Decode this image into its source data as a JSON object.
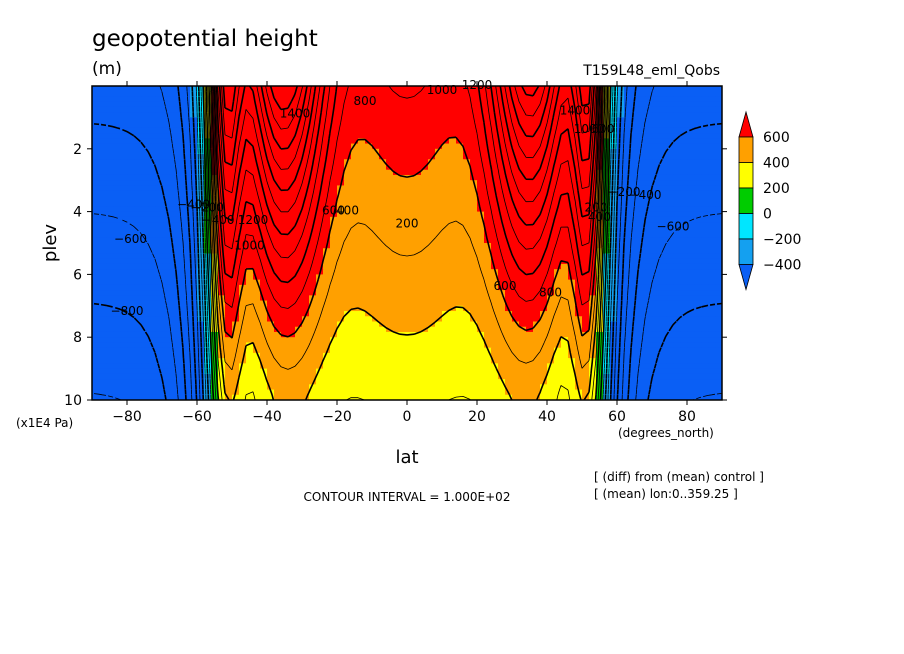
{
  "colors": {
    "c1": "#0a5ff5",
    "c2": "#14a0f0",
    "c3": "#00e6ff",
    "c4": "#00cc00",
    "c5": "#ffff00",
    "c6": "#ffa000",
    "c7": "#ff0000",
    "c0": "#0a5ff5"
  },
  "chart_data": {
    "type": "heatmap",
    "title": "geopotential height",
    "units": "(m)",
    "run_label": "T159L48_eml_Qobs",
    "xlabel": "lat",
    "xunits": "(degrees_north)",
    "ylabel": "plev",
    "yunits": "(x1E4 Pa)",
    "xlim": [
      -90,
      90
    ],
    "ylim": [
      0,
      10
    ],
    "y_reversed": true,
    "x_ticks": [
      -80,
      -60,
      -40,
      -20,
      0,
      20,
      40,
      60,
      80
    ],
    "x_tick_labels": [
      "−80",
      "−60",
      "−40",
      "−20",
      "0",
      "20",
      "40",
      "60",
      "80"
    ],
    "y_ticks": [
      2,
      4,
      6,
      8,
      10
    ],
    "y_tick_labels": [
      "2",
      "4",
      "6",
      "8",
      "10"
    ],
    "contour_interval_text": "CONTOUR INTERVAL = 1.000E+02",
    "note_lines": [
      "[ (diff) from (mean) control ]",
      "[ (mean) lon:0..359.25 ]"
    ],
    "colorbar": {
      "levels": [
        -400,
        -200,
        0,
        200,
        400,
        600
      ],
      "labels": [
        "−400",
        "−200",
        "0",
        "200",
        "400",
        "600"
      ],
      "colors": [
        "#0a5ff5",
        "#14a0f0",
        "#00e6ff",
        "#00cc00",
        "#ffff00",
        "#ffa000",
        "#ff0000"
      ]
    },
    "contour_labels": [
      {
        "text": "200",
        "x": 0,
        "y": 4.5
      },
      {
        "text": "400",
        "x": -17,
        "y": 4.1
      },
      {
        "text": "600",
        "x": -21,
        "y": 4.1
      },
      {
        "text": "800",
        "x": -12,
        "y": 0.6
      },
      {
        "text": "1000",
        "x": 10,
        "y": 0.25
      },
      {
        "text": "1200",
        "x": 20,
        "y": 0.1
      },
      {
        "text": "1400",
        "x": -32,
        "y": 1.0
      },
      {
        "text": "1400",
        "x": 48,
        "y": 0.9
      },
      {
        "text": "1200",
        "x": -44,
        "y": 4.4
      },
      {
        "text": "1000",
        "x": -45,
        "y": 5.2
      },
      {
        "text": "1000",
        "x": 52,
        "y": 1.5
      },
      {
        "text": "600",
        "x": 56,
        "y": 1.5
      },
      {
        "text": "600",
        "x": 28,
        "y": 6.5
      },
      {
        "text": "800",
        "x": 41,
        "y": 6.7
      },
      {
        "text": "−200",
        "x": 62,
        "y": 3.5
      },
      {
        "text": "−400",
        "x": 68,
        "y": 3.6
      },
      {
        "text": "−600",
        "x": 76,
        "y": 4.6
      },
      {
        "text": "−600",
        "x": -79,
        "y": 5.0
      },
      {
        "text": "−800",
        "x": -80,
        "y": 7.3
      },
      {
        "text": "−400",
        "x": -61,
        "y": 3.9
      },
      {
        "text": "−200",
        "x": -57,
        "y": 4.0
      },
      {
        "text": "200",
        "x": 54,
        "y": 4.0
      },
      {
        "text": "400",
        "x": 55,
        "y": 4.3
      },
      {
        "text": "−400",
        "x": -54,
        "y": 4.4
      }
    ]
  }
}
